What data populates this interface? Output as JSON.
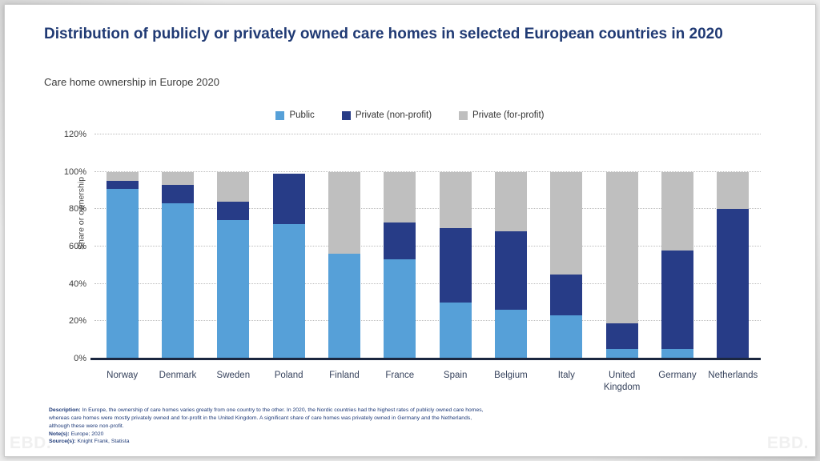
{
  "header": {
    "title": "Distribution of publicly or privately owned care homes in selected European countries in 2020",
    "subtitle": "Care home ownership in Europe 2020"
  },
  "watermark": "EBD.",
  "footnotes": {
    "description_label": "Description:",
    "description": "In Europe, the ownership of care homes varies greatly from one country to the other. In 2020, the Nordic countries had the highest rates of publicly owned care homes, whereas care homes were mostly privately owned and for-profit in the United Kingdom. A significant share of care homes was privately owned in Germany and the Netherlands, although these were non-profit.",
    "note_label": "Note(s):",
    "note": "Europe; 2020",
    "source_label": "Source(s):",
    "source": "Knight Frank, Statista"
  },
  "chart_data": {
    "type": "bar",
    "stacked": true,
    "title": "Care home ownership in Europe 2020",
    "categories": [
      "Norway",
      "Denmark",
      "Sweden",
      "Poland",
      "Finland",
      "France",
      "Spain",
      "Belgium",
      "Italy",
      "United Kingdom",
      "Germany",
      "Netherlands"
    ],
    "series": [
      {
        "name": "Public",
        "color": "#56a0d8",
        "values": [
          91,
          83,
          74,
          72,
          56,
          53,
          30,
          26,
          23,
          5,
          5,
          0
        ]
      },
      {
        "name": "Private (non-profit)",
        "color": "#273c87",
        "values": [
          4,
          10,
          10,
          27,
          0,
          20,
          40,
          42,
          22,
          14,
          53,
          80
        ]
      },
      {
        "name": "Private (for-profit)",
        "color": "#bfbfbf",
        "values": [
          5,
          7,
          16,
          0,
          44,
          27,
          30,
          32,
          55,
          81,
          42,
          20
        ]
      }
    ],
    "xlabel": "",
    "ylabel": "Share or ownership",
    "ylim": [
      0,
      120
    ],
    "ytick_step": 20,
    "ytick_format": "percent",
    "grid": "horizontal-dotted",
    "legend_position": "top-center"
  }
}
